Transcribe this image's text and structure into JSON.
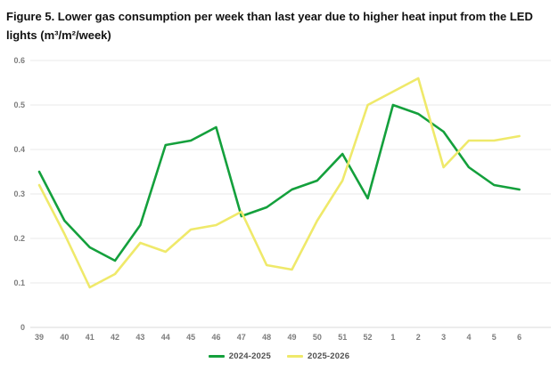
{
  "figure": {
    "title": "Figure 5. Lower gas consumption per week than last year due to higher heat input from the LED lights (m³/m²/week)"
  },
  "chart_data": {
    "type": "line",
    "title": "Lower gas consumption per week than last year",
    "xlabel": "",
    "ylabel": "",
    "categories": [
      "39",
      "40",
      "41",
      "42",
      "43",
      "44",
      "45",
      "46",
      "47",
      "48",
      "49",
      "50",
      "51",
      "52",
      "1",
      "2",
      "3",
      "4",
      "5",
      "6"
    ],
    "series": [
      {
        "name": "2024-2025",
        "color": "#14A03C",
        "values": [
          0.35,
          0.24,
          0.18,
          0.15,
          0.23,
          0.41,
          0.42,
          0.45,
          0.25,
          0.27,
          0.31,
          0.33,
          0.39,
          0.29,
          0.5,
          0.48,
          0.44,
          0.36,
          0.32,
          0.31
        ]
      },
      {
        "name": "2025-2026",
        "color": "#EFE96A",
        "values": [
          0.32,
          0.21,
          0.09,
          0.12,
          0.19,
          0.17,
          0.22,
          0.23,
          0.26,
          0.14,
          0.13,
          0.24,
          0.33,
          0.5,
          0.53,
          0.56,
          0.36,
          0.42,
          0.42,
          0.43
        ]
      }
    ],
    "ylim": [
      0,
      0.6
    ],
    "yticks": [
      0,
      0.1,
      0.2,
      0.3,
      0.4,
      0.5,
      0.6
    ],
    "ytick_labels": [
      "0",
      "0.1",
      "0.2",
      "0.3",
      "0.4",
      "0.5",
      "0.6"
    ],
    "grid": true,
    "gridline_color": "#E8E8E8",
    "baseline_color": "#D8D8D8",
    "legend_position": "bottom"
  }
}
